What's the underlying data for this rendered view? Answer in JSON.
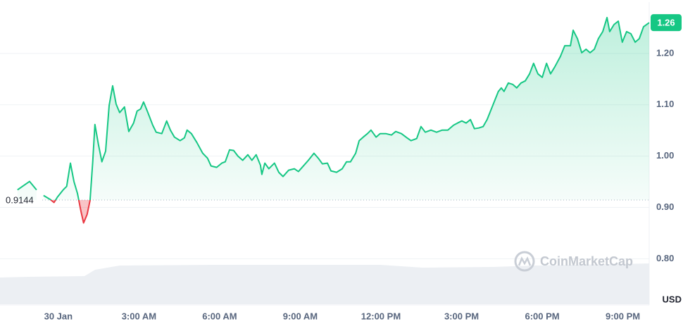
{
  "chart_data": {
    "type": "line",
    "x": [
      -1.52,
      -1.07,
      -0.81,
      -0.68,
      -0.55,
      -0.29,
      -0.16,
      -0.03,
      0.18,
      0.31,
      0.45,
      0.58,
      0.71,
      0.84,
      0.94,
      1.07,
      1.18,
      1.28,
      1.36,
      1.49,
      1.62,
      1.76,
      1.89,
      2.02,
      2.15,
      2.28,
      2.46,
      2.62,
      2.8,
      2.93,
      3.06,
      3.17,
      3.33,
      3.51,
      3.64,
      3.85,
      4.03,
      4.17,
      4.32,
      4.53,
      4.69,
      4.79,
      4.95,
      5.16,
      5.37,
      5.55,
      5.68,
      5.89,
      6.08,
      6.21,
      6.37,
      6.52,
      6.68,
      6.86,
      7.05,
      7.2,
      7.36,
      7.52,
      7.57,
      7.68,
      7.83,
      8.04,
      8.2,
      8.36,
      8.57,
      8.78,
      8.93,
      9.14,
      9.3,
      9.51,
      9.67,
      9.82,
      10.01,
      10.14,
      10.35,
      10.56,
      10.72,
      10.87,
      11.06,
      11.19,
      11.34,
      11.5,
      11.63,
      11.82,
      11.97,
      12.18,
      12.39,
      12.55,
      12.76,
      12.97,
      13.12,
      13.33,
      13.49,
      13.65,
      13.86,
      14.07,
      14.28,
      14.49,
      14.7,
      14.85,
      15.01,
      15.17,
      15.33,
      15.48,
      15.64,
      15.8,
      15.95,
      16.16,
      16.37,
      16.48,
      16.58,
      16.74,
      16.9,
      17.05,
      17.21,
      17.37,
      17.53,
      17.68,
      17.84,
      18.0,
      18.16,
      18.31,
      18.47,
      18.68,
      18.84,
      19.05,
      19.15,
      19.31,
      19.47,
      19.63,
      19.78,
      19.94,
      20.09,
      20.25,
      20.41,
      20.51,
      20.67,
      20.83,
      20.98,
      21.14,
      21.3,
      21.46,
      21.61,
      21.77,
      21.98
    ],
    "values": [
      0.9342,
      0.9507,
      0.9342,
      null,
      0.9233,
      0.9151,
      0.9096,
      0.9205,
      0.9342,
      0.9411,
      0.9863,
      0.9507,
      0.9274,
      0.8931,
      0.8699,
      0.8863,
      0.9137,
      0.989,
      1.0616,
      1.0233,
      0.989,
      1.0096,
      1.0986,
      1.137,
      1.1014,
      1.0849,
      1.0959,
      1.0479,
      1.0644,
      1.0877,
      1.0918,
      1.1055,
      1.0849,
      1.0603,
      1.0466,
      1.0438,
      1.0685,
      1.0507,
      1.037,
      1.0301,
      1.0356,
      1.0507,
      1.0438,
      1.026,
      1.0055,
      0.9959,
      0.9808,
      0.9781,
      0.9863,
      0.989,
      1.0123,
      1.011,
      1.0,
      0.9918,
      1.0027,
      0.9918,
      1.0027,
      0.9822,
      0.9644,
      0.9863,
      0.9753,
      0.9863,
      0.9685,
      0.9603,
      0.9726,
      0.9753,
      0.9699,
      0.9822,
      0.9918,
      1.0055,
      0.9959,
      0.9849,
      0.9863,
      0.9712,
      0.9685,
      0.9753,
      0.989,
      0.989,
      1.0055,
      1.0301,
      1.037,
      1.0438,
      1.0507,
      1.037,
      1.0438,
      1.0438,
      1.0411,
      1.0479,
      1.0438,
      1.0356,
      1.0301,
      1.0342,
      1.0575,
      1.0466,
      1.0507,
      1.0466,
      1.0507,
      1.0507,
      1.0603,
      1.0644,
      1.0685,
      1.0644,
      1.0712,
      1.0534,
      1.0548,
      1.0575,
      1.0712,
      1.0986,
      1.126,
      1.1329,
      1.126,
      1.1425,
      1.1397,
      1.1329,
      1.1425,
      1.1466,
      1.1603,
      1.1808,
      1.1603,
      1.1534,
      1.1808,
      1.1603,
      1.174,
      1.1945,
      1.2151,
      1.2151,
      1.2452,
      1.2288,
      1.2014,
      1.2082,
      1.2014,
      1.2082,
      1.2288,
      1.2425,
      1.2699,
      1.2425,
      1.2562,
      1.263,
      1.2219,
      1.2425,
      1.2384,
      1.2219,
      1.2288,
      1.2521,
      1.26
    ],
    "color": "#16c784",
    "negative_color": "#ea3943",
    "reference": 0.9144,
    "xlim": [
      -2.17,
      21.98
    ],
    "xticks": [
      {
        "value": 0,
        "label": "30 Jan"
      },
      {
        "value": 3,
        "label": "3:00 AM"
      },
      {
        "value": 6,
        "label": "6:00 AM"
      },
      {
        "value": 9,
        "label": "9:00 AM"
      },
      {
        "value": 12,
        "label": "12:00 PM"
      },
      {
        "value": 15,
        "label": "3:00 PM"
      },
      {
        "value": 18,
        "label": "6:00 PM"
      },
      {
        "value": 21,
        "label": "9:00 PM"
      }
    ],
    "ylim": [
      0.71,
      1.3
    ],
    "yticks": [
      {
        "value": 0.8,
        "label": "0.80"
      },
      {
        "value": 0.9,
        "label": "0.90"
      },
      {
        "value": 1.0,
        "label": "1.00"
      },
      {
        "value": 1.1,
        "label": "1.10"
      },
      {
        "value": 1.2,
        "label": "1.20"
      }
    ],
    "grid": true,
    "currency": "USD",
    "watermark": "CoinMarketCap"
  }
}
